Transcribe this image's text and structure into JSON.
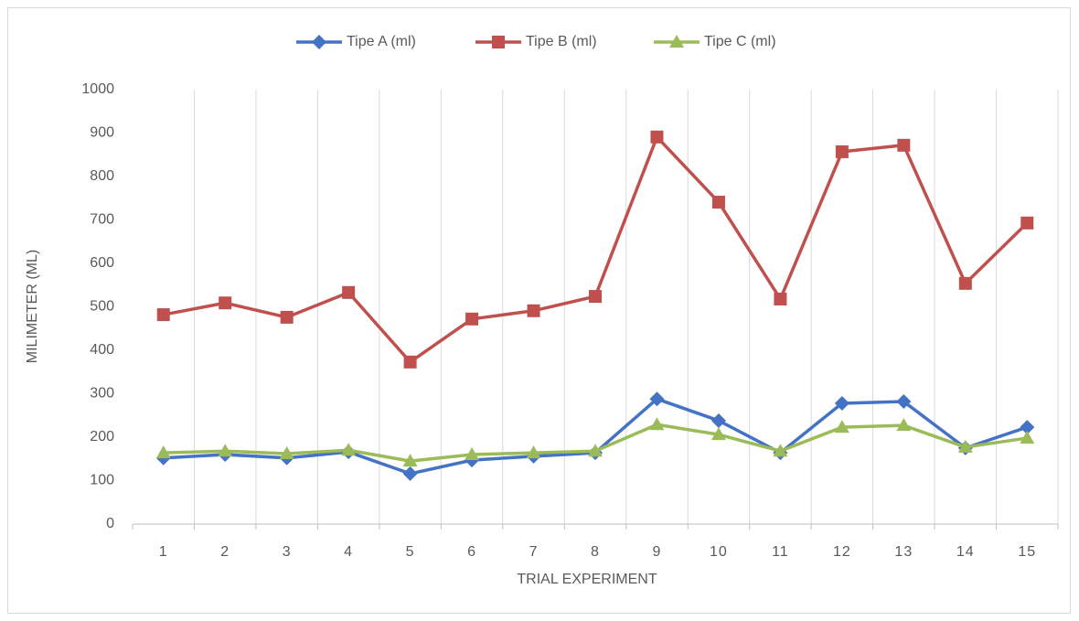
{
  "chart_data": {
    "type": "line",
    "x_label": "TRIAL EXPERIMENT",
    "y_label": "MILIMETER (ML)",
    "categories": [
      "1",
      "2",
      "3",
      "4",
      "5",
      "6",
      "7",
      "8",
      "9",
      "10",
      "11",
      "12",
      "13",
      "14",
      "15"
    ],
    "series": [
      {
        "name": "Tipe A (ml)",
        "color": "#4472c4",
        "marker": "diamond",
        "values": [
          152,
          160,
          152,
          166,
          116,
          147,
          156,
          164,
          288,
          238,
          164,
          278,
          282,
          175,
          223
        ]
      },
      {
        "name": "Tipe B (ml)",
        "color": "#c0504d",
        "marker": "square",
        "values": [
          482,
          509,
          476,
          533,
          373,
          472,
          491,
          524,
          891,
          741,
          518,
          857,
          872,
          554,
          693
        ]
      },
      {
        "name": "Tipe C (ml)",
        "color": "#9bbb59",
        "marker": "triangle",
        "values": [
          164,
          168,
          162,
          170,
          145,
          160,
          164,
          168,
          229,
          206,
          168,
          223,
          227,
          177,
          198
        ]
      }
    ],
    "ylim": [
      0,
      1000
    ],
    "yticks": [
      0,
      100,
      200,
      300,
      400,
      500,
      600,
      700,
      800,
      900,
      1000
    ],
    "grid": "x",
    "legend": "top"
  }
}
